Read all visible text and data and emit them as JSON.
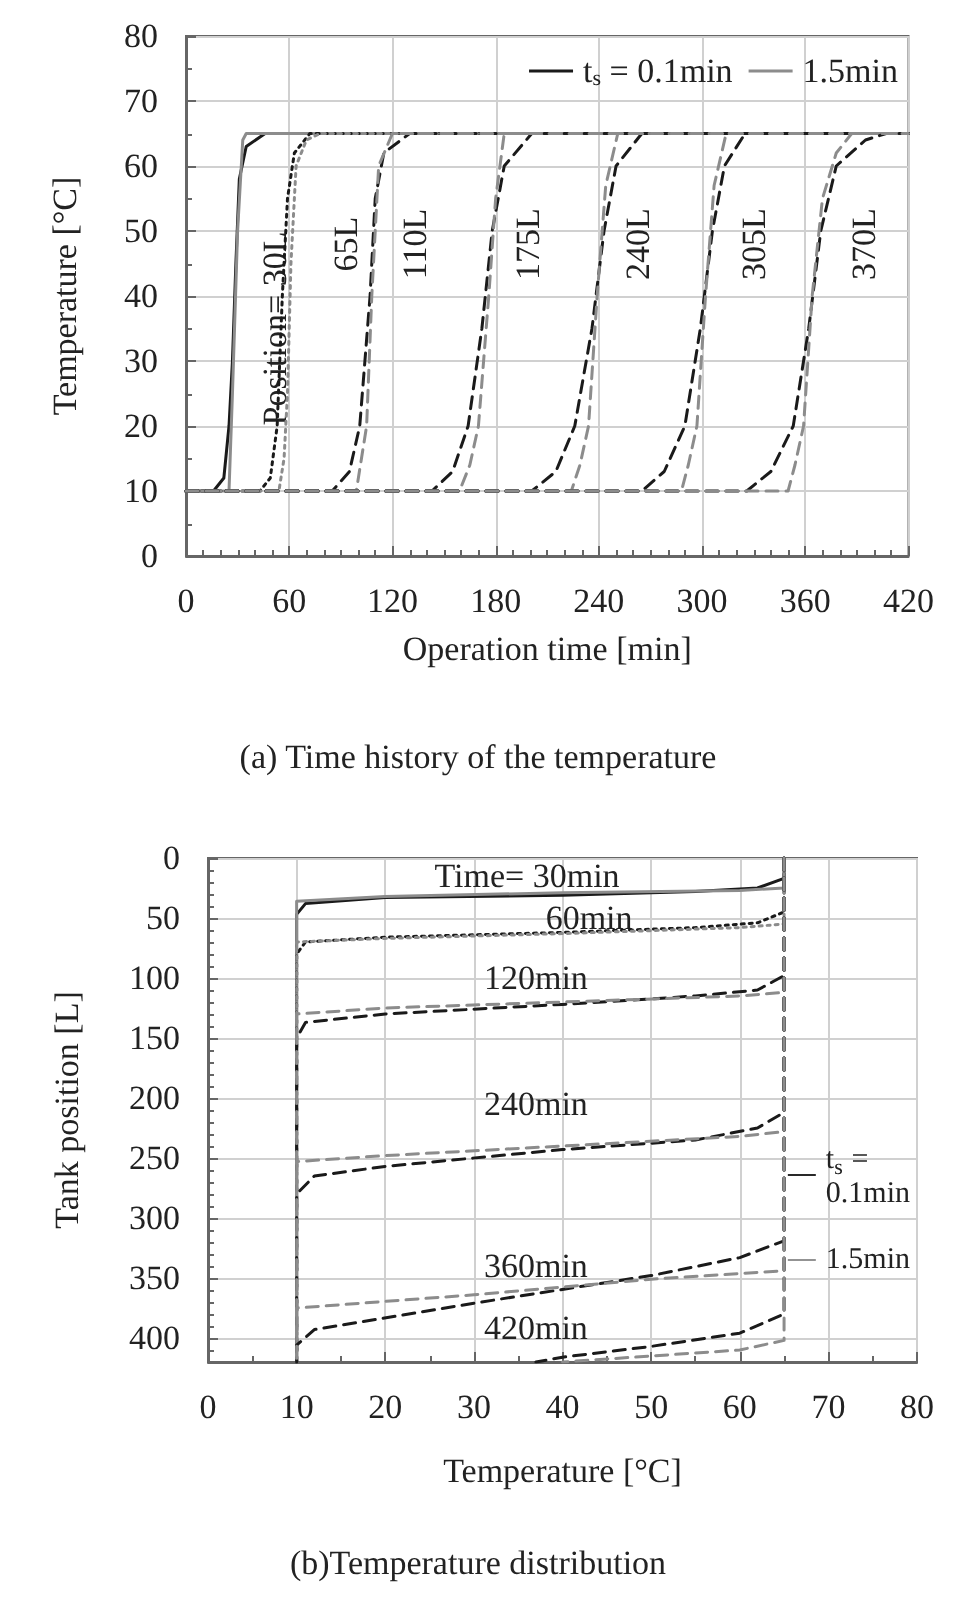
{
  "chart_data": [
    {
      "type": "line",
      "title": "(a) Time history of the temperature",
      "xlabel": "Operation time [min]",
      "ylabel": "Temperature [°C]",
      "xlim": [
        0,
        420
      ],
      "xticks": [
        0,
        60,
        120,
        180,
        240,
        300,
        360,
        420
      ],
      "ylim": [
        0,
        80
      ],
      "yticks": [
        0,
        10,
        20,
        30,
        40,
        50,
        60,
        70,
        80
      ],
      "grid": true,
      "legend": "top right",
      "marker": "none",
      "series": [
        {
          "name": "t$_{s}$ = 0.1min",
          "color": "#1a1a1a",
          "line_style": "solid",
          "x": [
            0,
            16,
            22,
            25,
            27,
            29,
            31,
            35,
            46,
            420
          ],
          "values": [
            10,
            10,
            12,
            20,
            30,
            45,
            58,
            63,
            65,
            65
          ]
        },
        {
          "name": "1.5min",
          "color": "#8c8c8c",
          "line_style": "solid",
          "x": [
            0,
            25,
            27,
            30,
            33,
            35,
            420
          ],
          "values": [
            10,
            10,
            25,
            50,
            64,
            65,
            65
          ]
        },
        {
          "color": "#1a1a1a",
          "line_style": "dotted",
          "x": [
            0,
            43,
            49,
            53,
            56,
            59,
            63,
            72,
            420
          ],
          "values": [
            10,
            10,
            12,
            20,
            40,
            55,
            62,
            65,
            65
          ]
        },
        {
          "color": "#8c8c8c",
          "line_style": "dotted",
          "x": [
            0,
            54,
            57,
            59,
            61,
            64,
            70,
            78,
            420
          ],
          "values": [
            10,
            10,
            15,
            25,
            45,
            60,
            64,
            65,
            65
          ]
        },
        {
          "color": "#1a1a1a",
          "line_style": "dashed",
          "x": [
            0,
            85,
            95,
            101,
            107,
            110,
            115,
            130,
            420
          ],
          "values": [
            10,
            10,
            13,
            20,
            40,
            55,
            62,
            65,
            65
          ]
        },
        {
          "color": "#8c8c8c",
          "line_style": "dashed",
          "x": [
            0,
            99,
            102,
            105,
            108,
            112,
            120,
            420
          ],
          "values": [
            10,
            10,
            15,
            20,
            40,
            60,
            65,
            65
          ]
        },
        {
          "color": "#1a1a1a",
          "line_style": "dashed",
          "x": [
            0,
            143,
            155,
            164,
            172,
            178,
            185,
            201,
            420
          ],
          "values": [
            10,
            10,
            13,
            20,
            35,
            50,
            60,
            65,
            65
          ]
        },
        {
          "color": "#8c8c8c",
          "line_style": "dashed",
          "x": [
            0,
            159,
            165,
            170,
            176,
            180,
            185,
            420
          ],
          "values": [
            10,
            10,
            14,
            20,
            40,
            55,
            65,
            65
          ]
        },
        {
          "color": "#1a1a1a",
          "line_style": "dashed",
          "x": [
            0,
            201,
            215,
            226,
            236,
            243,
            250,
            265,
            420
          ],
          "values": [
            10,
            10,
            13,
            20,
            35,
            50,
            60,
            65,
            65
          ]
        },
        {
          "color": "#8c8c8c",
          "line_style": "dashed",
          "x": [
            0,
            224,
            229,
            234,
            239,
            244,
            251,
            420
          ],
          "values": [
            10,
            10,
            14,
            20,
            40,
            57,
            65,
            65
          ]
        },
        {
          "color": "#1a1a1a",
          "line_style": "dashed",
          "x": [
            0,
            265,
            278,
            290,
            299,
            306,
            313,
            325,
            420
          ],
          "values": [
            10,
            10,
            13,
            20,
            35,
            50,
            60,
            65,
            65
          ]
        },
        {
          "color": "#8c8c8c",
          "line_style": "dashed",
          "x": [
            0,
            288,
            292,
            297,
            302,
            307,
            314,
            420
          ],
          "values": [
            10,
            10,
            14,
            20,
            40,
            57,
            65,
            65
          ]
        },
        {
          "color": "#1a1a1a",
          "line_style": "dashed",
          "x": [
            0,
            326,
            340,
            353,
            362,
            369,
            378,
            395,
            407,
            420
          ],
          "values": [
            10,
            10,
            13,
            20,
            35,
            50,
            60,
            64,
            65,
            65
          ]
        },
        {
          "color": "#8c8c8c",
          "line_style": "dashed",
          "x": [
            0,
            350,
            354,
            359,
            364,
            370,
            378,
            387,
            420
          ],
          "values": [
            10,
            10,
            14,
            20,
            40,
            55,
            62,
            65,
            65
          ]
        }
      ],
      "annotations": [
        "Position= 30L",
        "65L",
        "110L",
        "175L",
        "240L",
        "305L",
        "370L"
      ]
    },
    {
      "type": "line",
      "title": "(b)Temperature distribution",
      "xlabel": "Temperature [°C]",
      "ylabel": "Tank position [L]",
      "xlim": [
        0,
        80
      ],
      "xticks": [
        0,
        10,
        20,
        30,
        40,
        50,
        60,
        70,
        80
      ],
      "ylim": [
        420,
        0
      ],
      "yticks": [
        0,
        50,
        100,
        150,
        200,
        250,
        300,
        350,
        400
      ],
      "grid": true,
      "legend": "right",
      "marker": "none",
      "series": [
        {
          "name": "t$_{s}$ = 0.1min",
          "color": "#1a1a1a",
          "line_style": "solid",
          "x": [
            65,
            65,
            62,
            55,
            40,
            20,
            11,
            10,
            10
          ],
          "values": [
            0,
            17,
            25,
            28,
            31,
            33,
            38,
            47,
            420
          ]
        },
        {
          "name": "1.5min",
          "color": "#8c8c8c",
          "line_style": "solid",
          "x": [
            65,
            65,
            60,
            40,
            20,
            10,
            10
          ],
          "values": [
            0,
            25,
            27,
            29,
            32,
            36,
            420
          ]
        },
        {
          "color": "#1a1a1a",
          "line_style": "dotted",
          "x": [
            65,
            65,
            62,
            55,
            40,
            20,
            11,
            10,
            10
          ],
          "values": [
            0,
            45,
            54,
            58,
            62,
            66,
            70,
            80,
            420
          ]
        },
        {
          "color": "#8c8c8c",
          "line_style": "dotted",
          "x": [
            65,
            65,
            60,
            40,
            20,
            10,
            10
          ],
          "values": [
            0,
            55,
            58,
            63,
            67,
            70,
            420
          ]
        },
        {
          "color": "#1a1a1a",
          "line_style": "dashed",
          "x": [
            65,
            65,
            62,
            55,
            40,
            20,
            11,
            10,
            10
          ],
          "values": [
            0,
            98,
            110,
            115,
            122,
            130,
            137,
            150,
            420
          ]
        },
        {
          "color": "#8c8c8c",
          "line_style": "dashed",
          "x": [
            65,
            65,
            60,
            40,
            20,
            10,
            10
          ],
          "values": [
            0,
            112,
            115,
            120,
            125,
            130,
            420
          ]
        },
        {
          "color": "#1a1a1a",
          "line_style": "dashed",
          "x": [
            65,
            65,
            62,
            55,
            40,
            20,
            12,
            10,
            10
          ],
          "values": [
            0,
            212,
            225,
            235,
            243,
            257,
            265,
            280,
            420
          ]
        },
        {
          "color": "#8c8c8c",
          "line_style": "dashed",
          "x": [
            65,
            65,
            60,
            40,
            20,
            10,
            10
          ],
          "values": [
            0,
            228,
            232,
            240,
            248,
            253,
            420
          ]
        },
        {
          "color": "#1a1a1a",
          "line_style": "dashed",
          "x": [
            65,
            65,
            60,
            50,
            30,
            12,
            10,
            10
          ],
          "values": [
            0,
            319,
            333,
            348,
            371,
            393,
            406,
            420
          ]
        },
        {
          "color": "#8c8c8c",
          "line_style": "dashed",
          "x": [
            65,
            65,
            50,
            30,
            10,
            10
          ],
          "values": [
            0,
            344,
            351,
            364,
            375,
            420
          ]
        },
        {
          "color": "#1a1a1a",
          "line_style": "dashed",
          "x": [
            65,
            65,
            60,
            50,
            40,
            37
          ],
          "values": [
            0,
            380,
            396,
            407,
            416,
            420
          ]
        },
        {
          "color": "#8c8c8c",
          "line_style": "dashed",
          "x": [
            65,
            65,
            60,
            50,
            40
          ],
          "values": [
            0,
            402,
            410,
            415,
            420
          ]
        }
      ],
      "annotations": [
        "Time= 30min",
        "60min",
        "120min",
        "240min",
        "360min",
        "420min"
      ]
    }
  ]
}
